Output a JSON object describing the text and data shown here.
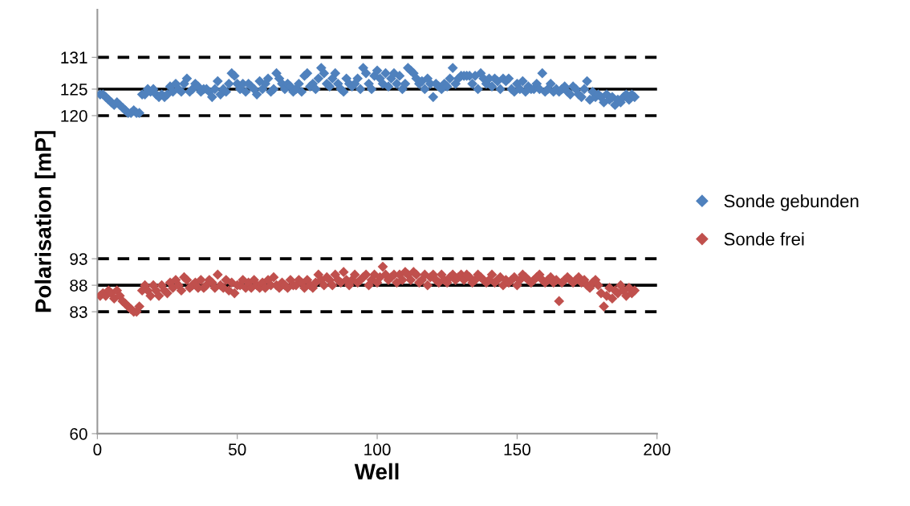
{
  "chart_data": {
    "type": "scatter",
    "xlabel": "Well",
    "ylabel": "Polarisation [mP]",
    "x": [
      1,
      2,
      3,
      4,
      5,
      6,
      7,
      8,
      9,
      10,
      11,
      12,
      13,
      14,
      15,
      16,
      17,
      18,
      19,
      20,
      21,
      22,
      23,
      24,
      25,
      26,
      27,
      28,
      29,
      30,
      31,
      32,
      33,
      34,
      35,
      36,
      37,
      38,
      39,
      40,
      41,
      42,
      43,
      44,
      45,
      46,
      47,
      48,
      49,
      50,
      51,
      52,
      53,
      54,
      55,
      56,
      57,
      58,
      59,
      60,
      61,
      62,
      63,
      64,
      65,
      66,
      67,
      68,
      69,
      70,
      71,
      72,
      73,
      74,
      75,
      76,
      77,
      78,
      79,
      80,
      81,
      82,
      83,
      84,
      85,
      86,
      87,
      88,
      89,
      90,
      91,
      92,
      93,
      94,
      95,
      96,
      97,
      98,
      99,
      100,
      101,
      102,
      103,
      104,
      105,
      106,
      107,
      108,
      109,
      110,
      111,
      112,
      113,
      114,
      115,
      116,
      117,
      118,
      119,
      120,
      121,
      122,
      123,
      124,
      125,
      126,
      127,
      128,
      129,
      130,
      131,
      132,
      133,
      134,
      135,
      136,
      137,
      138,
      139,
      140,
      141,
      142,
      143,
      144,
      145,
      146,
      147,
      148,
      149,
      150,
      151,
      152,
      153,
      154,
      155,
      156,
      157,
      158,
      159,
      160,
      161,
      162,
      163,
      164,
      165,
      166,
      167,
      168,
      169,
      170,
      171,
      172,
      173,
      174,
      175,
      176,
      177,
      178,
      179,
      180,
      181,
      182,
      183,
      184,
      185,
      186,
      187,
      188,
      189,
      190,
      191,
      192
    ],
    "series": [
      {
        "name": "Sonde gebunden",
        "color": "#4f81bd",
        "values": [
          124,
          124,
          123.5,
          123,
          122.5,
          122,
          122.5,
          122,
          121.5,
          121,
          120.5,
          120.5,
          121,
          120.5,
          120.5,
          124,
          124,
          125,
          124.5,
          125,
          124,
          123.5,
          124,
          123.5,
          124,
          125.5,
          124.5,
          126,
          125,
          124.5,
          126,
          127,
          124.5,
          125,
          126,
          125.5,
          124.5,
          125,
          125,
          124.5,
          123.5,
          125,
          126.5,
          124,
          125,
          124.5,
          126,
          128,
          127.5,
          126,
          125,
          126,
          124.5,
          126,
          125.5,
          125,
          124,
          126.5,
          125,
          126,
          127,
          124.5,
          125,
          128,
          127,
          126,
          125,
          126,
          125.5,
          124.5,
          125,
          126,
          124.5,
          127.5,
          128,
          125.5,
          126,
          125,
          127,
          129,
          128,
          126,
          125.5,
          127,
          128,
          126,
          125,
          124.5,
          127,
          126,
          125.5,
          126,
          127,
          125,
          129,
          128,
          126,
          125,
          127.5,
          128.5,
          127,
          126,
          128,
          125.5,
          127,
          128,
          126,
          127.5,
          125,
          126,
          129,
          128.5,
          128,
          127,
          126,
          126.5,
          125,
          127,
          126,
          123.5,
          126,
          125.5,
          125,
          126,
          125.5,
          127,
          129,
          126,
          127,
          127.5,
          127.5,
          127.5,
          127.5,
          126,
          127.5,
          125,
          128,
          127,
          126,
          127,
          125.5,
          127,
          126.5,
          125,
          127,
          126.5,
          127,
          125,
          124.5,
          126,
          125,
          126.5,
          124.5,
          125.5,
          125,
          125,
          126,
          125,
          128,
          124.5,
          125,
          126,
          124.5,
          125,
          124.5,
          125,
          125.5,
          124.5,
          124,
          125.5,
          125,
          124,
          123.5,
          125,
          126.5,
          123,
          124.5,
          123.5,
          124,
          123.5,
          122.5,
          124,
          123,
          123.5,
          122,
          123,
          122.5,
          123.5,
          124,
          123,
          124,
          123.5
        ]
      },
      {
        "name": "Sonde frei",
        "color": "#c0504d",
        "values": [
          86,
          86.5,
          86,
          87,
          86.5,
          85.5,
          87,
          86,
          85,
          84.5,
          84,
          83.5,
          83,
          83,
          84,
          87,
          88,
          87,
          86,
          88,
          87,
          86,
          88,
          87,
          86.5,
          88.5,
          87.5,
          89,
          88,
          87,
          89.5,
          89,
          87.5,
          88,
          88.5,
          87.5,
          89,
          87.5,
          88,
          89,
          88.5,
          87.5,
          90,
          88,
          87.5,
          89,
          87,
          88.5,
          86.5,
          88,
          88,
          89,
          87.5,
          88.5,
          87.5,
          89,
          88,
          87.5,
          88.5,
          87.5,
          89,
          88,
          89.5,
          88,
          87.5,
          88.5,
          88,
          87.5,
          89,
          88,
          88,
          89,
          88.5,
          87.5,
          89,
          88,
          87.5,
          88.5,
          90,
          89,
          88,
          89.5,
          89,
          88,
          90,
          89,
          88.5,
          90.5,
          89,
          88,
          89,
          90,
          88.5,
          89,
          89.5,
          90,
          88,
          89,
          90,
          88.5,
          89.5,
          91.5,
          90,
          89,
          89.5,
          90,
          88.5,
          90,
          89,
          90.5,
          90,
          89,
          90.5,
          90,
          88.5,
          89,
          90,
          88,
          89.5,
          90,
          89,
          88.5,
          90,
          89,
          88.5,
          89.5,
          90,
          89,
          89.5,
          90,
          89,
          90,
          89.5,
          88.5,
          89,
          90,
          89.5,
          89,
          88.5,
          89,
          90,
          88.5,
          89,
          89.5,
          88,
          89,
          88.5,
          89,
          89.5,
          88,
          89,
          90,
          89.5,
          89,
          88.5,
          89,
          89.5,
          90,
          89,
          88.5,
          89,
          89.5,
          88.5,
          89,
          85,
          88.5,
          89,
          89.5,
          89,
          88.5,
          89,
          89.5,
          88.5,
          89,
          88,
          87.5,
          88.5,
          89,
          88,
          86.5,
          84,
          86,
          87.5,
          85.5,
          87,
          86.5,
          88,
          87,
          86,
          87.5,
          86.5,
          87
        ]
      }
    ],
    "marker": "diamond",
    "xlim": [
      0,
      200
    ],
    "xticks": [
      0,
      50,
      100,
      150,
      200
    ],
    "ylim": [
      60,
      140
    ],
    "yticks": [
      60,
      83,
      88,
      93,
      120,
      125,
      131
    ],
    "ref_lines": [
      {
        "axis": "y",
        "value": 131,
        "color": "#000000",
        "line_style": "dashed"
      },
      {
        "axis": "y",
        "value": 125,
        "color": "#000000",
        "line_style": "solid"
      },
      {
        "axis": "y",
        "value": 120,
        "color": "#000000",
        "line_style": "dashed"
      },
      {
        "axis": "y",
        "value": 93,
        "color": "#000000",
        "line_style": "dashed"
      },
      {
        "axis": "y",
        "value": 88,
        "color": "#000000",
        "line_style": "solid"
      },
      {
        "axis": "y",
        "value": 83,
        "color": "#000000",
        "line_style": "dashed"
      }
    ],
    "legend": "right"
  }
}
